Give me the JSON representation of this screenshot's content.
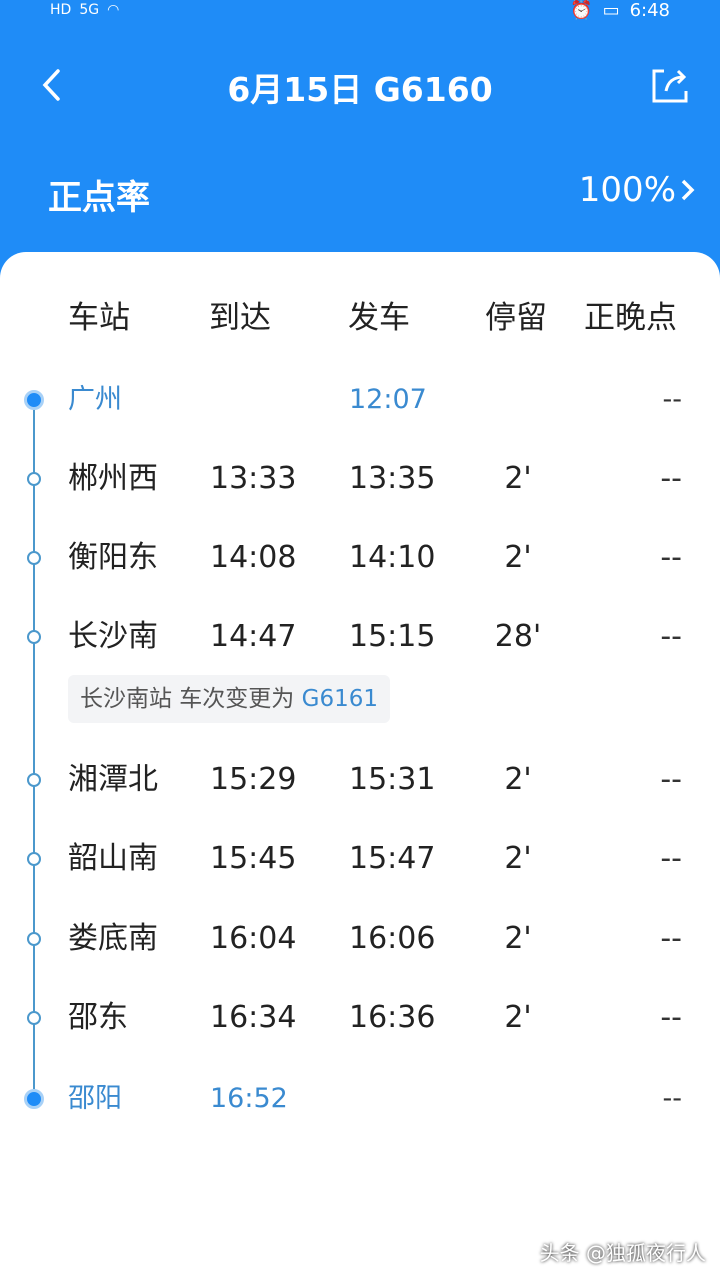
{
  "status_bar": {
    "left_icons": [
      "HD",
      "5G"
    ],
    "time": "6:48"
  },
  "header": {
    "title": "6月15日 G6160",
    "on_time_label": "正点率",
    "on_time_rate": "100%"
  },
  "columns": [
    "车站",
    "到达",
    "发车",
    "停留",
    "正晚点"
  ],
  "stops": [
    {
      "station": "广州",
      "arrive": "",
      "depart": "12:07",
      "stop": "",
      "late": "--",
      "terminal": true
    },
    {
      "station": "郴州西",
      "arrive": "13:33",
      "depart": "13:35",
      "stop": "2'",
      "late": "--"
    },
    {
      "station": "衡阳东",
      "arrive": "14:08",
      "depart": "14:10",
      "stop": "2'",
      "late": "--"
    },
    {
      "station": "长沙南",
      "arrive": "14:47",
      "depart": "15:15",
      "stop": "28'",
      "late": "--"
    },
    {
      "station": "湘潭北",
      "arrive": "15:29",
      "depart": "15:31",
      "stop": "2'",
      "late": "--"
    },
    {
      "station": "韶山南",
      "arrive": "15:45",
      "depart": "15:47",
      "stop": "2'",
      "late": "--"
    },
    {
      "station": "娄底南",
      "arrive": "16:04",
      "depart": "16:06",
      "stop": "2'",
      "late": "--"
    },
    {
      "station": "邵东",
      "arrive": "16:34",
      "depart": "16:36",
      "stop": "2'",
      "late": "--"
    },
    {
      "station": "邵阳",
      "arrive": "16:52",
      "depart": "",
      "stop": "",
      "late": "--",
      "terminal": true
    }
  ],
  "note": {
    "text": "长沙南站 车次变更为 ",
    "train": "G6161"
  },
  "watermark": "头条 @独孤夜行人",
  "colors": {
    "primary": "#1f8cf7",
    "accent_text": "#3a8ad0"
  }
}
